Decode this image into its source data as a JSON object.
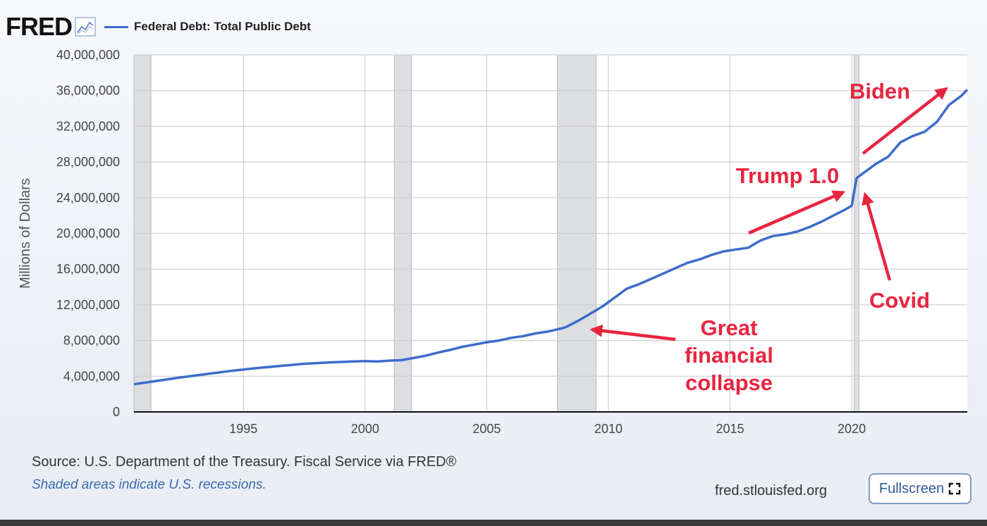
{
  "header": {
    "logo": "FRED",
    "legend_label": "Federal Debt: Total Public Debt"
  },
  "footer": {
    "source": "Source: U.S. Department of the Treasury. Fiscal Service via FRED®",
    "note": "Shaded areas indicate U.S. recessions.",
    "site": "fred.stlouisfed.org",
    "fullscreen_label": "Fullscreen"
  },
  "icons": {
    "logo_chart": "line-chart-icon",
    "fullscreen": "fullscreen-icon"
  },
  "colors": {
    "series": "#3c6ccc",
    "annotation": "#e8253f",
    "recession": "#dcdee2",
    "grid": "#cfcfcf"
  },
  "chart_data": {
    "type": "line",
    "title": "",
    "xlabel": "",
    "ylabel": "Millions of Dollars",
    "xlim": [
      1990.5,
      2024.75
    ],
    "ylim": [
      0,
      40000000
    ],
    "grid": true,
    "x_ticks": [
      1995,
      2000,
      2005,
      2010,
      2015,
      2020
    ],
    "y_ticks": [
      0,
      4000000,
      8000000,
      12000000,
      16000000,
      20000000,
      24000000,
      28000000,
      32000000,
      36000000,
      40000000
    ],
    "y_tick_labels": [
      "0",
      "4,000,000",
      "8,000,000",
      "12,000,000",
      "16,000,000",
      "20,000,000",
      "24,000,000",
      "28,000,000",
      "32,000,000",
      "36,000,000",
      "40,000,000"
    ],
    "recessions": [
      {
        "start": 1990.5,
        "end": 1991.2
      },
      {
        "start": 2001.2,
        "end": 2001.9
      },
      {
        "start": 2007.9,
        "end": 2009.5
      },
      {
        "start": 2020.1,
        "end": 2020.3
      }
    ],
    "series": [
      {
        "name": "Federal Debt: Total Public Debt",
        "x": [
          1990.5,
          1991.5,
          1992.5,
          1993.5,
          1994.5,
          1995.5,
          1996.5,
          1997.5,
          1998.5,
          1999.5,
          2000.0,
          2000.5,
          2001.0,
          2001.5,
          2002.0,
          2002.5,
          2003.0,
          2003.5,
          2004.0,
          2004.5,
          2005.0,
          2005.5,
          2006.0,
          2006.5,
          2007.0,
          2007.5,
          2008.0,
          2008.25,
          2008.75,
          2009.25,
          2009.75,
          2010.25,
          2010.75,
          2011.25,
          2011.75,
          2012.25,
          2012.75,
          2013.25,
          2013.75,
          2014.25,
          2014.75,
          2015.25,
          2015.75,
          2016.25,
          2016.75,
          2017.25,
          2017.75,
          2018.25,
          2018.75,
          2019.25,
          2019.75,
          2020.0,
          2020.2,
          2020.5,
          2021.0,
          2021.5,
          2022.0,
          2022.5,
          2023.0,
          2023.5,
          2024.0,
          2024.5,
          2024.75
        ],
        "values": [
          3100000,
          3500000,
          3900000,
          4250000,
          4600000,
          4900000,
          5150000,
          5400000,
          5550000,
          5650000,
          5700000,
          5650000,
          5750000,
          5800000,
          6050000,
          6300000,
          6650000,
          6950000,
          7300000,
          7550000,
          7800000,
          8000000,
          8300000,
          8500000,
          8800000,
          9000000,
          9300000,
          9500000,
          10200000,
          11000000,
          11800000,
          12800000,
          13800000,
          14300000,
          14900000,
          15500000,
          16100000,
          16700000,
          17100000,
          17600000,
          18000000,
          18200000,
          18400000,
          19200000,
          19700000,
          19900000,
          20200000,
          20700000,
          21300000,
          22000000,
          22700000,
          23100000,
          26200000,
          26800000,
          27800000,
          28600000,
          30200000,
          30900000,
          31400000,
          32500000,
          34400000,
          35400000,
          36100000
        ]
      }
    ],
    "annotations": [
      {
        "text_lines": [
          "Biden"
        ]
      },
      {
        "text_lines": [
          "Trump 1.0"
        ]
      },
      {
        "text_lines": [
          "Covid"
        ]
      },
      {
        "text_lines": [
          "Great",
          "financial",
          "collapse"
        ]
      }
    ]
  }
}
